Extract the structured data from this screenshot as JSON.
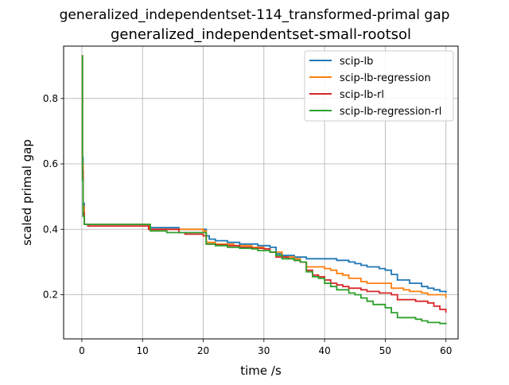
{
  "chart_data": {
    "type": "line",
    "suptitle": "generalized_independentset-114_transformed-primal gap",
    "title": "generalized_independentset-small-rootsol",
    "xlabel": "time /s",
    "ylabel": "scaled primal gap",
    "xlim": [
      -3,
      62
    ],
    "ylim": [
      0.065,
      0.96
    ],
    "xticks": [
      0,
      10,
      20,
      30,
      40,
      50,
      60
    ],
    "yticks": [
      0.2,
      0.4,
      0.6,
      0.8
    ],
    "ytick_labels": [
      "0.2",
      "0.4",
      "0.6",
      "0.8"
    ],
    "grid": true,
    "legend_position": "top-right",
    "series": [
      {
        "name": "scip-lb",
        "color": "#1f77b4",
        "points": [
          [
            0,
            0.93
          ],
          [
            0.1,
            0.62
          ],
          [
            0.2,
            0.48
          ],
          [
            0.4,
            0.415
          ],
          [
            10.8,
            0.415
          ],
          [
            11,
            0.405
          ],
          [
            16,
            0.4
          ],
          [
            20,
            0.4
          ],
          [
            20.5,
            0.38
          ],
          [
            21,
            0.37
          ],
          [
            22,
            0.365
          ],
          [
            24,
            0.36
          ],
          [
            26,
            0.355
          ],
          [
            28,
            0.355
          ],
          [
            29,
            0.35
          ],
          [
            31,
            0.345
          ],
          [
            32,
            0.325
          ],
          [
            33,
            0.32
          ],
          [
            35,
            0.315
          ],
          [
            37,
            0.31
          ],
          [
            41,
            0.31
          ],
          [
            42,
            0.305
          ],
          [
            44,
            0.3
          ],
          [
            45,
            0.295
          ],
          [
            46,
            0.29
          ],
          [
            47,
            0.285
          ],
          [
            49,
            0.28
          ],
          [
            50,
            0.275
          ],
          [
            51,
            0.262
          ],
          [
            52,
            0.245
          ],
          [
            54,
            0.235
          ],
          [
            56,
            0.225
          ],
          [
            57,
            0.22
          ],
          [
            58,
            0.215
          ],
          [
            59,
            0.21
          ],
          [
            60,
            0.205
          ]
        ]
      },
      {
        "name": "scip-lb-regression",
        "color": "#ff7f0e",
        "points": [
          [
            0,
            0.93
          ],
          [
            0.1,
            0.6
          ],
          [
            0.2,
            0.47
          ],
          [
            0.4,
            0.415
          ],
          [
            10.9,
            0.415
          ],
          [
            11.2,
            0.4
          ],
          [
            20,
            0.395
          ],
          [
            20.5,
            0.36
          ],
          [
            22,
            0.355
          ],
          [
            25,
            0.35
          ],
          [
            28,
            0.345
          ],
          [
            30,
            0.34
          ],
          [
            31,
            0.33
          ],
          [
            33,
            0.315
          ],
          [
            35,
            0.31
          ],
          [
            36,
            0.3
          ],
          [
            37,
            0.285
          ],
          [
            40,
            0.28
          ],
          [
            41,
            0.275
          ],
          [
            42,
            0.265
          ],
          [
            43,
            0.26
          ],
          [
            44,
            0.25
          ],
          [
            46,
            0.24
          ],
          [
            47,
            0.235
          ],
          [
            50,
            0.235
          ],
          [
            51,
            0.22
          ],
          [
            53,
            0.215
          ],
          [
            54,
            0.21
          ],
          [
            56,
            0.205
          ],
          [
            57,
            0.2
          ],
          [
            59,
            0.2
          ],
          [
            60,
            0.19
          ]
        ]
      },
      {
        "name": "scip-lb-rl",
        "color": "#d62728",
        "points": [
          [
            0,
            0.93
          ],
          [
            0.1,
            0.58
          ],
          [
            0.2,
            0.45
          ],
          [
            0.4,
            0.415
          ],
          [
            1,
            0.41
          ],
          [
            10.5,
            0.41
          ],
          [
            11,
            0.4
          ],
          [
            16,
            0.39
          ],
          [
            17,
            0.385
          ],
          [
            20,
            0.38
          ],
          [
            20.5,
            0.355
          ],
          [
            22,
            0.352
          ],
          [
            24,
            0.35
          ],
          [
            26,
            0.345
          ],
          [
            28,
            0.342
          ],
          [
            30,
            0.34
          ],
          [
            31,
            0.33
          ],
          [
            32,
            0.315
          ],
          [
            34,
            0.31
          ],
          [
            35,
            0.305
          ],
          [
            36,
            0.3
          ],
          [
            37,
            0.275
          ],
          [
            38,
            0.26
          ],
          [
            39,
            0.255
          ],
          [
            40,
            0.245
          ],
          [
            41,
            0.235
          ],
          [
            42,
            0.23
          ],
          [
            43,
            0.225
          ],
          [
            44,
            0.22
          ],
          [
            46,
            0.215
          ],
          [
            47,
            0.21
          ],
          [
            49,
            0.205
          ],
          [
            51,
            0.2
          ],
          [
            52,
            0.185
          ],
          [
            55,
            0.18
          ],
          [
            57,
            0.175
          ],
          [
            58,
            0.165
          ],
          [
            59,
            0.155
          ],
          [
            60,
            0.145
          ]
        ]
      },
      {
        "name": "scip-lb-regression-rl",
        "color": "#2ca02c",
        "points": [
          [
            0,
            0.93
          ],
          [
            0.1,
            0.55
          ],
          [
            0.2,
            0.44
          ],
          [
            0.4,
            0.415
          ],
          [
            11,
            0.415
          ],
          [
            11.3,
            0.395
          ],
          [
            14,
            0.39
          ],
          [
            20,
            0.39
          ],
          [
            20.5,
            0.355
          ],
          [
            22,
            0.35
          ],
          [
            24,
            0.345
          ],
          [
            26,
            0.342
          ],
          [
            28,
            0.34
          ],
          [
            29,
            0.335
          ],
          [
            31,
            0.33
          ],
          [
            32,
            0.32
          ],
          [
            33,
            0.31
          ],
          [
            35,
            0.305
          ],
          [
            36,
            0.3
          ],
          [
            37,
            0.27
          ],
          [
            38,
            0.255
          ],
          [
            39,
            0.25
          ],
          [
            40,
            0.235
          ],
          [
            41,
            0.225
          ],
          [
            42,
            0.215
          ],
          [
            44,
            0.205
          ],
          [
            45,
            0.2
          ],
          [
            46,
            0.19
          ],
          [
            47,
            0.18
          ],
          [
            48,
            0.17
          ],
          [
            50,
            0.16
          ],
          [
            51,
            0.145
          ],
          [
            52,
            0.13
          ],
          [
            55,
            0.125
          ],
          [
            56,
            0.12
          ],
          [
            57,
            0.115
          ],
          [
            59,
            0.112
          ],
          [
            60,
            0.11
          ]
        ]
      }
    ]
  }
}
